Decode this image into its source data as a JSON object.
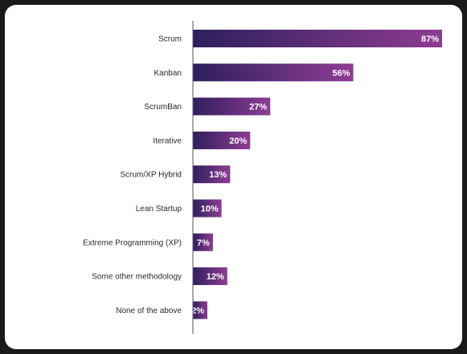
{
  "chart_data": {
    "type": "bar",
    "orientation": "horizontal",
    "categories": [
      "Scrum",
      "Kanban",
      "ScrumBan",
      "Iterative",
      "Scrum/XP Hybrid",
      "Lean Startup",
      "Extreme Programming (XP)",
      "Some other methodology",
      "None of the above"
    ],
    "values": [
      87,
      56,
      27,
      20,
      13,
      10,
      7,
      12,
      2
    ],
    "value_labels": [
      "87%",
      "56%",
      "27%",
      "20%",
      "13%",
      "10%",
      "7%",
      "12%",
      "2%"
    ],
    "xlim": [
      0,
      87
    ],
    "grid": false,
    "colors": {
      "bar_start": "#2e1f5e",
      "bar_end": "#8e3c93",
      "axis": "#555555",
      "label_text": "#2b2b2b",
      "value_text": "#ffffff"
    }
  }
}
